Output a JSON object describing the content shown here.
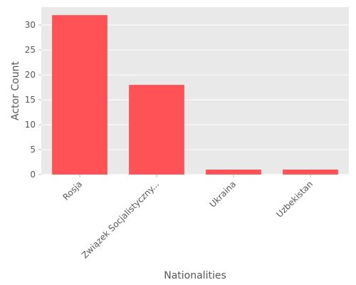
{
  "colors": {
    "bar": "#ff5257",
    "plot_background": "#e9e9e9",
    "grid": "#ffffff",
    "text": "#555555"
  },
  "chart_data": {
    "type": "bar",
    "title": "",
    "xlabel": "Nationalities",
    "ylabel": "Actor Count",
    "categories": [
      "Rosja",
      "Związek Socjalistyczny...",
      "Ukraina",
      "Uzbekistan"
    ],
    "values": [
      32,
      18,
      1,
      1
    ],
    "ylim": [
      0,
      33.6
    ],
    "yticks": [
      0,
      5,
      10,
      15,
      20,
      25,
      30
    ],
    "grid": true,
    "legend": "none"
  }
}
